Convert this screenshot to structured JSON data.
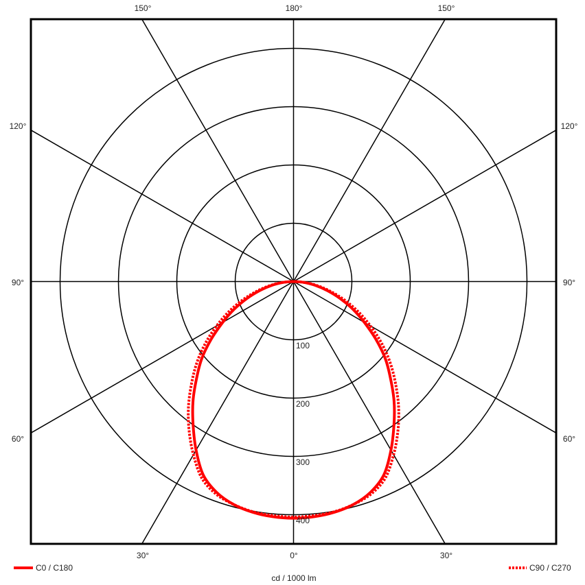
{
  "chart_data": {
    "type": "polar",
    "unit_label": "cd / 1000 lm",
    "radial_range": [
      0,
      400
    ],
    "radial_ticks": [
      "100",
      "200",
      "300",
      "400"
    ],
    "radial_tick_values": [
      100,
      200,
      300,
      400
    ],
    "angle_labels": {
      "top": [
        "150°",
        "180°",
        "150°"
      ],
      "left": [
        "120°",
        "90°",
        "60°"
      ],
      "right": [
        "120°",
        "90°",
        "60°"
      ],
      "bottom": [
        "30°",
        "0°",
        "30°"
      ]
    },
    "grid": true,
    "angles_deg": [
      0,
      5,
      10,
      15,
      20,
      25,
      30,
      35,
      40,
      45,
      50,
      55,
      60,
      65,
      70,
      75,
      80,
      85,
      90
    ],
    "series": [
      {
        "name": "C0 / C180",
        "style": "solid",
        "color": "#ff0000",
        "values": [
          406,
          405,
          402,
          396,
          385,
          366,
          334,
          300,
          268,
          235,
          205,
          172,
          140,
          112,
          85,
          60,
          38,
          18,
          0
        ]
      },
      {
        "name": "C90 / C270",
        "style": "dotted",
        "color": "#ff0000",
        "values": [
          404,
          403,
          401,
          396,
          388,
          372,
          343,
          312,
          280,
          247,
          216,
          184,
          152,
          122,
          93,
          66,
          42,
          20,
          0
        ]
      }
    ],
    "legend": {
      "left": "C0 / C180",
      "right": "C90 / C270"
    }
  }
}
